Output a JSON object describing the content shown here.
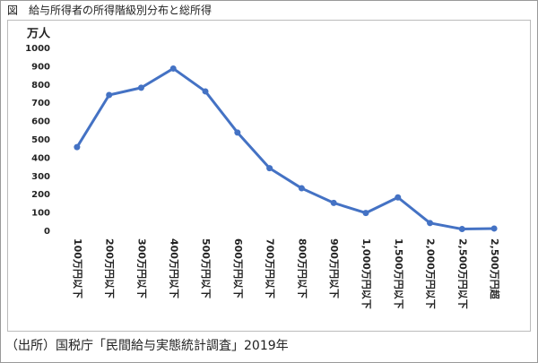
{
  "chart_data": {
    "type": "line",
    "title": "図　給与所得者の所得階級別分布と総所得",
    "y_label": "万人",
    "source": "（出所）国税庁「民間給与実態統計調査」2019年",
    "categories": [
      "100万円以下",
      "200万円以下",
      "300万円以下",
      "400万円以下",
      "500万円以下",
      "600万円以下",
      "700万円以下",
      "800万円以下",
      "900万円以下",
      "1,000万円以下",
      "1,500万円以下",
      "2,000万円以下",
      "2,500万円以下",
      "2,500万円超"
    ],
    "series": [
      {
        "color": "#4472c4",
        "values": [
          460,
          745,
          785,
          890,
          765,
          540,
          345,
          235,
          155,
          100,
          185,
          45,
          12,
          15
        ]
      }
    ],
    "ylim": [
      0,
      1000
    ],
    "yticks": [
      0,
      100,
      200,
      300,
      400,
      500,
      600,
      700,
      800,
      900,
      1000
    ],
    "grid": false
  }
}
